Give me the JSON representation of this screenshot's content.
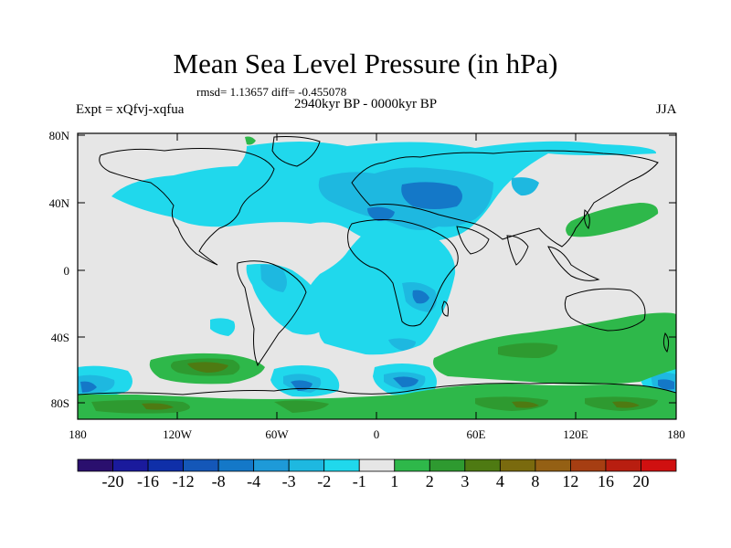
{
  "title": "Mean Sea Level Pressure (in hPa)",
  "stats": "rmsd= 1.13657 diff= -0.455078",
  "left_label": "Expt = xQfvj-xqfua",
  "center_label": "2940kyr BP - 0000kyr BP",
  "right_label": "JJA",
  "lat_labels": [
    "80N",
    "40N",
    "0",
    "40S",
    "80S"
  ],
  "lon_labels": [
    "180",
    "120W",
    "60W",
    "0",
    "60E",
    "120E",
    "180"
  ],
  "colorbar": {
    "colors": [
      "#2a0f6e",
      "#1a1a9c",
      "#0f2fa8",
      "#1457b8",
      "#1478c8",
      "#1e9ad8",
      "#1eb8e0",
      "#20d8ec",
      "#e6e6e6",
      "#2eb84a",
      "#2e9a30",
      "#4e7a12",
      "#7a6a0e",
      "#946014",
      "#a63e12",
      "#b81e10",
      "#d01010"
    ],
    "labels": [
      "-20",
      "-16",
      "-12",
      "-8",
      "-4",
      "-3",
      "-2",
      "-1",
      "1",
      "2",
      "3",
      "4",
      "8",
      "12",
      "16",
      "20"
    ]
  }
}
